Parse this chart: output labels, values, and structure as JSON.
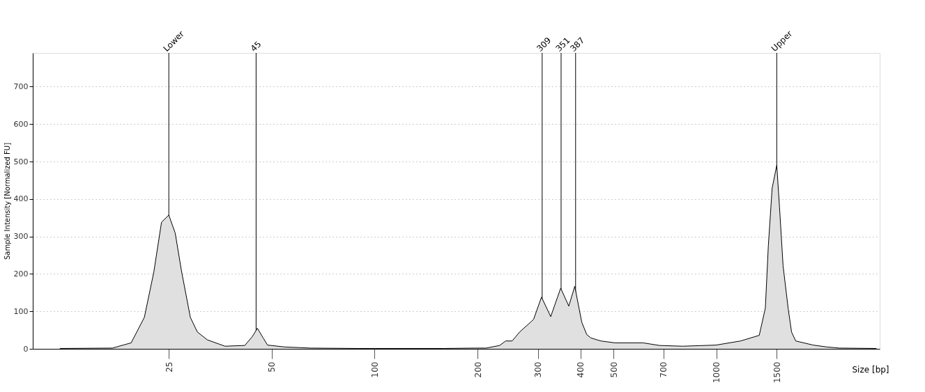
{
  "chart_data": {
    "type": "area",
    "xlabel": "Size [bp]",
    "ylabel": "Sample Intensity [Normalized FU]",
    "x": [
      12,
      17.1,
      19.4,
      21.2,
      22.6,
      23.8,
      25,
      26.1,
      27.2,
      28.9,
      30.3,
      32.4,
      36.5,
      41.7,
      43.9,
      45.4,
      47.2,
      48.6,
      54.5,
      64.9,
      89.2,
      100,
      160,
      197.7,
      211.9,
      232,
      241.7,
      252.4,
      265.5,
      288,
      291.7,
      307.6,
      327.3,
      350,
      369.7,
      384.8,
      403.4,
      417.2,
      429.3,
      458.6,
      504.2,
      609.5,
      681,
      796,
      996,
      1176,
      1333,
      1389,
      1417,
      1454,
      1500,
      1528,
      1565,
      1620,
      1657,
      1704,
      1917,
      2102,
      2287,
      2935
    ],
    "series": [
      {
        "color": "#e0e0e0",
        "values": [
          1,
          2,
          16,
          84,
          205,
          338,
          357,
          309,
          210,
          84,
          45,
          24,
          7,
          9,
          33,
          55,
          29,
          10,
          5,
          2,
          1,
          1,
          1,
          2,
          2,
          9,
          21,
          21,
          45,
          74,
          79,
          138,
          86,
          162,
          114,
          167,
          71,
          38,
          29,
          21,
          16,
          16,
          9,
          7,
          10,
          21,
          36,
          109,
          274,
          429,
          490,
          378,
          222,
          107,
          45,
          21,
          10,
          5,
          2,
          1
        ]
      }
    ],
    "xlim": [
      10,
      3000
    ],
    "log": "x",
    "xticks": [
      25,
      50,
      100,
      200,
      300,
      400,
      500,
      700,
      1000,
      1500
    ],
    "ylim": [
      0,
      790
    ],
    "yticks": [
      0,
      100,
      200,
      300,
      400,
      500,
      600,
      700
    ],
    "grid": "y",
    "ref_lines": [
      {
        "axis": "x",
        "value": 25,
        "label": "Lower"
      },
      {
        "axis": "x",
        "value": 45,
        "label": "45"
      },
      {
        "axis": "x",
        "value": 309,
        "label": "309"
      },
      {
        "axis": "x",
        "value": 351,
        "label": "351"
      },
      {
        "axis": "x",
        "value": 387,
        "label": "387"
      },
      {
        "axis": "x",
        "value": 1500,
        "label": "Upper"
      }
    ]
  }
}
